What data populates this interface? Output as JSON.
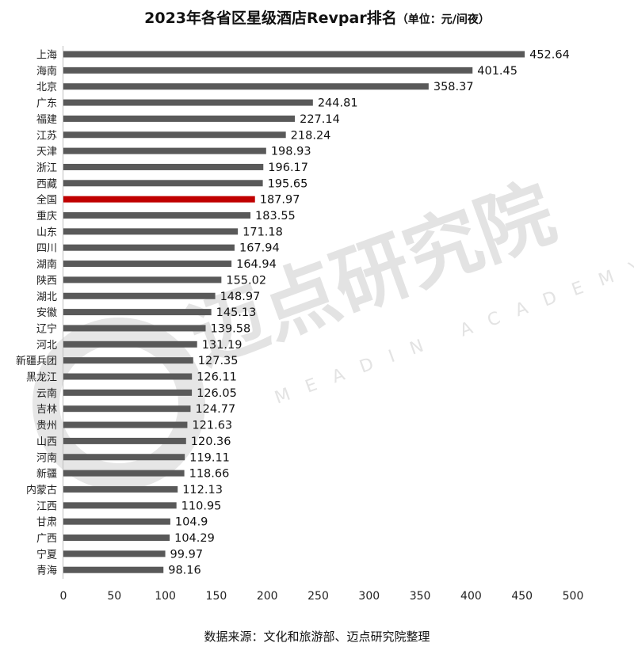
{
  "chart_data": {
    "type": "bar",
    "orientation": "horizontal",
    "title": "2023年各省区星级酒店Revpar排名",
    "subtitle": "（单位：元/间夜）",
    "categories": [
      "上海",
      "海南",
      "北京",
      "广东",
      "福建",
      "江苏",
      "天津",
      "浙江",
      "西藏",
      "全国",
      "重庆",
      "山东",
      "四川",
      "湖南",
      "陕西",
      "湖北",
      "安徽",
      "辽宁",
      "河北",
      "新疆兵团",
      "黑龙江",
      "云南",
      "吉林",
      "贵州",
      "山西",
      "河南",
      "新疆",
      "内蒙古",
      "江西",
      "甘肃",
      "广西",
      "宁夏",
      "青海"
    ],
    "values": [
      452.64,
      401.45,
      358.37,
      244.81,
      227.14,
      218.24,
      198.93,
      196.17,
      195.65,
      187.97,
      183.55,
      171.18,
      167.94,
      164.94,
      155.02,
      148.97,
      145.13,
      139.58,
      131.19,
      127.35,
      126.11,
      126.05,
      124.77,
      121.63,
      120.36,
      119.11,
      118.66,
      112.13,
      110.95,
      104.9,
      104.29,
      99.97,
      98.16
    ],
    "data_labels": [
      "452.64",
      "401.45",
      "358.37",
      "244.81",
      "227.14",
      "218.24",
      "198.93",
      "196.17",
      "195.65",
      "187.97",
      "183.55",
      "171.18",
      "167.94",
      "164.94",
      "155.02",
      "148.97",
      "145.13",
      "139.58",
      "131.19",
      "127.35",
      "126.11",
      "126.05",
      "124.77",
      "121.63",
      "120.36",
      "119.11",
      "118.66",
      "112.13",
      "110.95",
      "104.9",
      "104.29",
      "99.97",
      "98.16"
    ],
    "highlight_category": "全国",
    "bar_color": "#595959",
    "highlight_color": "#c00000",
    "xlim": [
      0,
      500
    ],
    "xticks": [
      0,
      50,
      100,
      150,
      200,
      250,
      300,
      350,
      400,
      450,
      500
    ],
    "grid": false,
    "legend": "none",
    "source": "数据来源：文化和旅游部、迈点研究院整理"
  },
  "watermark": {
    "name": "迈点研究院",
    "name_en": "MEADIN ACADEMY",
    "color": "#e3e3e3"
  }
}
